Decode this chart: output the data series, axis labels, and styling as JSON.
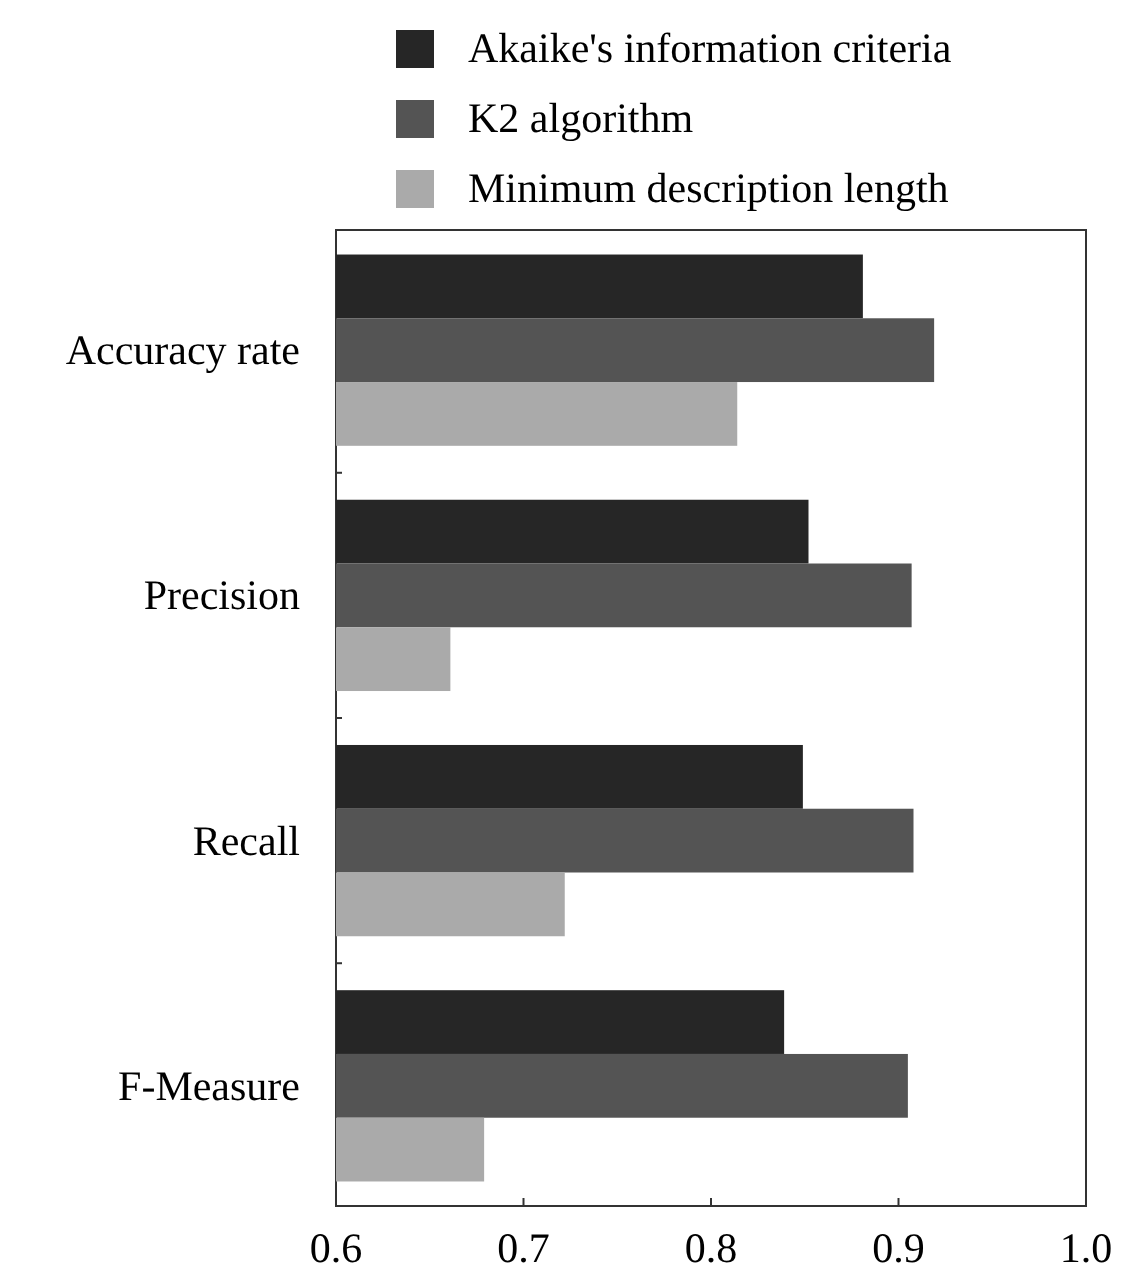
{
  "chart_data": {
    "type": "bar",
    "orientation": "horizontal",
    "categories": [
      "Accuracy rate",
      "Precision",
      "Recall",
      "F-Measure"
    ],
    "series": [
      {
        "name": "Akaike's information criteria",
        "color": "#262626",
        "values": [
          0.881,
          0.852,
          0.849,
          0.839
        ]
      },
      {
        "name": "K2 algorithm",
        "color": "#545454",
        "values": [
          0.919,
          0.907,
          0.908,
          0.905
        ]
      },
      {
        "name": "Minimum description length",
        "color": "#aaaaaa",
        "values": [
          0.814,
          0.661,
          0.722,
          0.679
        ]
      }
    ],
    "xlim": [
      0.6,
      1.0
    ],
    "xticks": [
      0.6,
      0.7,
      0.8,
      0.9,
      {
        "value": 1.0,
        "label": "1.0"
      }
    ],
    "grid": false,
    "legend": "top"
  }
}
